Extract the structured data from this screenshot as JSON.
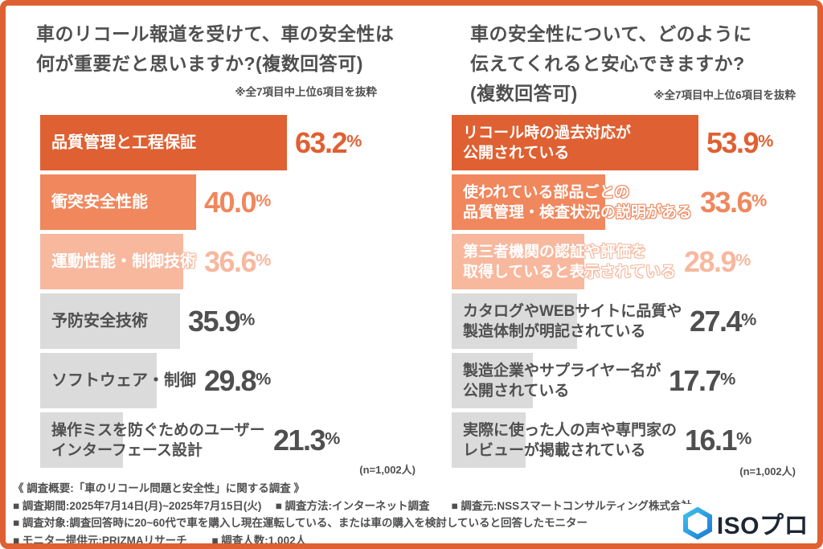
{
  "palette": {
    "accent_dark": "#DF6032",
    "accent_medium": "#F0875D",
    "accent_light": "#F7B89E",
    "bar_gray": "#DBDBDB",
    "text_dark": "#4F4F4F",
    "logo_blue_light": "#3EC0EE",
    "logo_blue_dark": "#1C7CD5",
    "logo_text_color": "#1D2733"
  },
  "chart_data": [
    {
      "type": "bar",
      "orientation": "horizontal",
      "title": "車のリコール報道を受けて、車の安全性は何が重要だと思いますか?(複数回答可)",
      "title_line1": "車のリコール報道を受けて、車の安全性は",
      "title_line2": "何が重要だと思いますか?(複数回答可)",
      "note": "※全7項目中上位6項目を抜粋",
      "sample_label": "(n=1,002人)",
      "xlim": [
        0,
        65
      ],
      "grid": false,
      "legend": false,
      "categories": [
        "品質管理と工程保証",
        "衝突安全性能",
        "運動性能・制御技術",
        "予防安全技術",
        "ソフトウェア・制御",
        "操作ミスを防ぐためのユーザーインターフェース設計"
      ],
      "values": [
        63.2,
        40.0,
        36.6,
        35.9,
        29.8,
        21.3
      ],
      "items": [
        {
          "label_lines": [
            "品質管理と工程保証"
          ],
          "value": 63.2,
          "value_label": "63.2%",
          "tone": "dark"
        },
        {
          "label_lines": [
            "衝突安全性能"
          ],
          "value": 40.0,
          "value_label": "40.0%",
          "tone": "medium"
        },
        {
          "label_lines": [
            "運動性能・制御技術"
          ],
          "value": 36.6,
          "value_label": "36.6%",
          "tone": "light"
        },
        {
          "label_lines": [
            "予防安全技術"
          ],
          "value": 35.9,
          "value_label": "35.9%",
          "tone": "gray"
        },
        {
          "label_lines": [
            "ソフトウェア・制御"
          ],
          "value": 29.8,
          "value_label": "29.8%",
          "tone": "gray"
        },
        {
          "label_lines": [
            "操作ミスを防ぐためのユーザー",
            "インターフェース設計"
          ],
          "value": 21.3,
          "value_label": "21.3%",
          "tone": "gray"
        }
      ]
    },
    {
      "type": "bar",
      "orientation": "horizontal",
      "title": "車の安全性について、どのように伝えてくれると安心できますか?(複数回答可)",
      "title_line1": "車の安全性について、どのように",
      "title_line2": "伝えてくれると安心できますか?",
      "title_line3": "(複数回答可)",
      "note": "※全7項目中上位6項目を抜粋",
      "sample_label": "(n=1,002人)",
      "xlim": [
        0,
        55
      ],
      "grid": false,
      "legend": false,
      "categories": [
        "リコール時の過去対応が公開されている",
        "使われている部品ごとの品質管理・検査状況の説明がある",
        "第三者機関の認証や評価を取得していると表示されている",
        "カタログやWEBサイトに品質や製造体制が明記されている",
        "製造企業やサプライヤー名が公開されている",
        "実際に使った人の声や専門家のレビューが掲載されている"
      ],
      "values": [
        53.9,
        33.6,
        28.9,
        27.4,
        17.7,
        16.1
      ],
      "items": [
        {
          "label_lines": [
            "リコール時の過去対応が",
            "公開されている"
          ],
          "value": 53.9,
          "value_label": "53.9%",
          "tone": "dark"
        },
        {
          "label_lines": [
            "使われている部品ごとの",
            "品質管理・検査状況の説明がある"
          ],
          "value": 33.6,
          "value_label": "33.6%",
          "tone": "medium"
        },
        {
          "label_lines": [
            "第三者機関の認証や評価を",
            "取得していると表示されている"
          ],
          "value": 28.9,
          "value_label": "28.9%",
          "tone": "light"
        },
        {
          "label_lines": [
            "カタログやWEBサイトに品質や",
            "製造体制が明記されている"
          ],
          "value": 27.4,
          "value_label": "27.4%",
          "tone": "gray"
        },
        {
          "label_lines": [
            "製造企業やサプライヤー名が",
            "公開されている"
          ],
          "value": 17.7,
          "value_label": "17.7%",
          "tone": "gray"
        },
        {
          "label_lines": [
            "実際に使った人の声や専門家の",
            "レビューが掲載されている"
          ],
          "value": 16.1,
          "value_label": "16.1%",
          "tone": "gray"
        }
      ]
    }
  ],
  "footer": {
    "line1": "《 調査概要:「車のリコール問題と安全性」に関する調査 》",
    "line2": "■ 調査期間:2025年7月14日(月)~2025年7月15日(火)　 ■ 調査方法:インターネット調査　　■ 調査元:NSSスマートコンサルティング株式会社",
    "line3": "■ 調査対象:調査回答時に20~60代で車を購入し現在運転している、または車の購入を検討していると回答したモニター",
    "line4": "■ モニター提供元:PRIZMAリサーチ　　 ■ 調査人数:1,002人"
  },
  "logo": {
    "text": "ISOプロ",
    "icon": "hexagon-icon"
  }
}
